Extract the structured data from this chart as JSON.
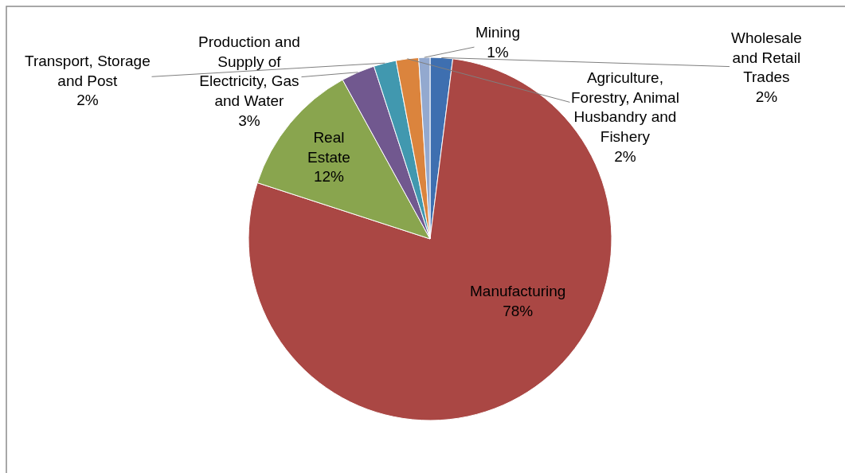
{
  "chart_data": {
    "type": "pie",
    "categories": [
      "Wholesale and Retail Trades",
      "Manufacturing",
      "Real Estate",
      "Production and Supply of Electricity, Gas and Water",
      "Transport, Storage and Post",
      "Agriculture, Forestry, Animal Husbandry and Fishery",
      "Mining"
    ],
    "values": [
      2,
      78,
      12,
      3,
      2,
      2,
      1
    ],
    "value_labels": [
      "2%",
      "78%",
      "12%",
      "3%",
      "2%",
      "2%",
      "1%"
    ],
    "colors": [
      "#3e6fb0",
      "#aa4744",
      "#89a54e",
      "#71588f",
      "#4198af",
      "#db843d",
      "#93a9cf"
    ],
    "legend": false
  }
}
